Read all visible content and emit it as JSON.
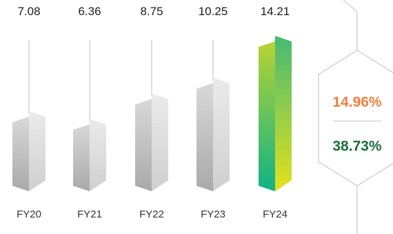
{
  "chart_data": {
    "type": "bar",
    "categories": [
      "FY20",
      "FY21",
      "FY22",
      "FY23",
      "FY24"
    ],
    "values": [
      7.08,
      6.36,
      8.75,
      10.25,
      14.21
    ],
    "value_labels": [
      "7.08",
      "6.36",
      "8.75",
      "10.25",
      "14.21"
    ],
    "highlight_category": "FY24",
    "title": "",
    "xlabel": "",
    "ylabel": "",
    "ylim": [
      0,
      15
    ]
  },
  "growth_panel": {
    "metric_1": "14.96%",
    "metric_2": "38.73%"
  },
  "colors": {
    "grey_light": "#ebebeb",
    "grey_dark": "#a9a9a9",
    "highlight_top_left": "#b7d334",
    "highlight_bottom_left": "#10b286",
    "highlight_top_right": "#46b975",
    "highlight_bottom_right": "#e3e21d",
    "metric_1_color": "#f07f3c",
    "metric_2_color": "#1b6e3a",
    "line_color": "#bdbdbd",
    "tick_highlight": "#10b286"
  }
}
